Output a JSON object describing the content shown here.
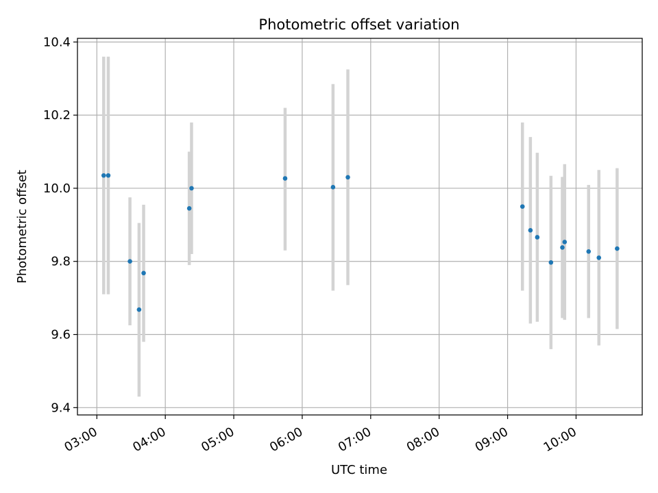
{
  "chart_data": {
    "type": "scatter",
    "title": "Photometric offset variation",
    "xlabel": "UTC time",
    "ylabel": "Photometric offset",
    "xlim": [
      "02:43",
      "10:58"
    ],
    "ylim": [
      9.38,
      10.41
    ],
    "xticks": [
      "03:00",
      "04:00",
      "05:00",
      "06:00",
      "07:00",
      "08:00",
      "09:00",
      "10:00"
    ],
    "yticks": [
      "9.4",
      "9.6",
      "9.8",
      "10.0",
      "10.2",
      "10.4"
    ],
    "grid": true,
    "colors": {
      "point": "#1f77b4",
      "errorbar": "#d3d3d3",
      "grid": "#b0b0b0"
    },
    "points": [
      {
        "x": "03:06",
        "y": 10.035,
        "ylow": 9.71,
        "yhigh": 10.36
      },
      {
        "x": "03:10",
        "y": 10.035,
        "ylow": 9.71,
        "yhigh": 10.36
      },
      {
        "x": "03:29",
        "y": 9.8,
        "ylow": 9.625,
        "yhigh": 9.975
      },
      {
        "x": "03:37",
        "y": 9.668,
        "ylow": 9.43,
        "yhigh": 9.905
      },
      {
        "x": "03:41",
        "y": 9.768,
        "ylow": 9.58,
        "yhigh": 9.955
      },
      {
        "x": "04:21",
        "y": 9.945,
        "ylow": 9.79,
        "yhigh": 10.1
      },
      {
        "x": "04:23",
        "y": 10.0,
        "ylow": 9.82,
        "yhigh": 10.18
      },
      {
        "x": "05:45",
        "y": 10.027,
        "ylow": 9.83,
        "yhigh": 10.22
      },
      {
        "x": "06:27",
        "y": 10.003,
        "ylow": 9.72,
        "yhigh": 10.285
      },
      {
        "x": "06:40",
        "y": 10.03,
        "ylow": 9.735,
        "yhigh": 10.325
      },
      {
        "x": "09:13",
        "y": 9.95,
        "ylow": 9.72,
        "yhigh": 10.18
      },
      {
        "x": "09:20",
        "y": 9.885,
        "ylow": 9.63,
        "yhigh": 10.14
      },
      {
        "x": "09:26",
        "y": 9.866,
        "ylow": 9.635,
        "yhigh": 10.097
      },
      {
        "x": "09:38",
        "y": 9.797,
        "ylow": 9.56,
        "yhigh": 10.034
      },
      {
        "x": "09:48",
        "y": 9.838,
        "ylow": 9.645,
        "yhigh": 10.031
      },
      {
        "x": "09:50",
        "y": 9.853,
        "ylow": 9.64,
        "yhigh": 10.066
      },
      {
        "x": "10:11",
        "y": 9.827,
        "ylow": 9.645,
        "yhigh": 10.009
      },
      {
        "x": "10:20",
        "y": 9.81,
        "ylow": 9.57,
        "yhigh": 10.05
      },
      {
        "x": "10:36",
        "y": 9.835,
        "ylow": 9.615,
        "yhigh": 10.055
      }
    ]
  }
}
